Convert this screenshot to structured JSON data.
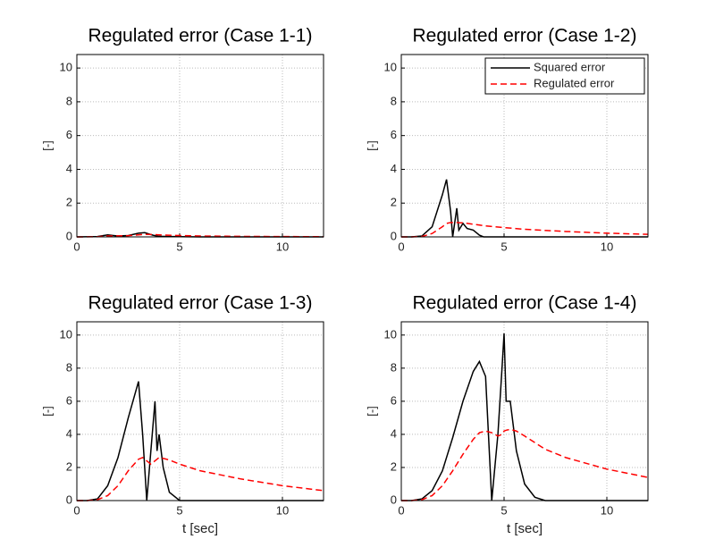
{
  "chart_data": [
    {
      "type": "line",
      "title": "Regulated error (Case 1-1)",
      "ylabel": "[-]",
      "x": [
        0,
        1,
        1.5,
        2,
        2.5,
        3,
        3.3,
        3.7,
        4,
        5,
        6,
        8,
        10,
        12
      ],
      "series": [
        {
          "color": "#000000",
          "dash": false,
          "values": [
            0,
            0.02,
            0.12,
            0.05,
            0.08,
            0.22,
            0.25,
            0.1,
            0.03,
            0.01,
            0,
            0,
            0,
            0
          ]
        },
        {
          "color": "#ff0000",
          "dash": true,
          "values": [
            0,
            0.01,
            0.05,
            0.06,
            0.07,
            0.12,
            0.15,
            0.14,
            0.12,
            0.08,
            0.05,
            0.03,
            0.02,
            0.01
          ]
        }
      ],
      "xlim": [
        0,
        12
      ],
      "ylim": [
        0,
        10.8
      ],
      "xticks": [
        0,
        5,
        10
      ],
      "yticks": [
        0,
        2,
        4,
        6,
        8,
        10
      ],
      "grid": true
    },
    {
      "type": "line",
      "title": "Regulated error (Case 1-2)",
      "ylabel": "[-]",
      "x": [
        0,
        0.5,
        1,
        1.5,
        2,
        2.2,
        2.4,
        2.5,
        2.7,
        2.8,
        3,
        3.2,
        3.5,
        3.8,
        4,
        5,
        6,
        8,
        10,
        12
      ],
      "series": [
        {
          "name": "Squared error",
          "color": "#000000",
          "dash": false,
          "values": [
            0,
            0,
            0.05,
            0.6,
            2.5,
            3.4,
            1.5,
            0,
            1.7,
            0.4,
            0.8,
            0.5,
            0.4,
            0.1,
            0,
            0,
            0,
            0,
            0,
            0
          ]
        },
        {
          "name": "Regulated error",
          "color": "#ff0000",
          "dash": true,
          "values": [
            0,
            0,
            0.02,
            0.2,
            0.6,
            0.8,
            0.85,
            0.85,
            0.85,
            0.84,
            0.83,
            0.8,
            0.75,
            0.7,
            0.66,
            0.55,
            0.45,
            0.32,
            0.22,
            0.15
          ]
        }
      ],
      "legend": "upper right",
      "xlim": [
        0,
        12
      ],
      "ylim": [
        0,
        10.8
      ],
      "xticks": [
        0,
        5,
        10
      ],
      "yticks": [
        0,
        2,
        4,
        6,
        8,
        10
      ],
      "grid": true
    },
    {
      "type": "line",
      "title": "Regulated error (Case 1-3)",
      "ylabel": "[-]",
      "xlabel": "t [sec]",
      "x": [
        0,
        0.5,
        1,
        1.5,
        2,
        2.5,
        3,
        3.2,
        3.4,
        3.6,
        3.8,
        3.9,
        4,
        4.2,
        4.5,
        5,
        6,
        8,
        10,
        12
      ],
      "series": [
        {
          "color": "#000000",
          "dash": false,
          "values": [
            0,
            0,
            0.1,
            0.9,
            2.6,
            5,
            7.2,
            4,
            0,
            3,
            6,
            3,
            4,
            2,
            0.5,
            0,
            0,
            0,
            0,
            0
          ]
        },
        {
          "color": "#ff0000",
          "dash": true,
          "values": [
            0,
            0,
            0.05,
            0.3,
            0.9,
            1.8,
            2.5,
            2.6,
            2.4,
            2.2,
            2.4,
            2.5,
            2.6,
            2.55,
            2.45,
            2.2,
            1.8,
            1.3,
            0.9,
            0.6
          ]
        }
      ],
      "xlim": [
        0,
        12
      ],
      "ylim": [
        0,
        10.8
      ],
      "xticks": [
        0,
        5,
        10
      ],
      "yticks": [
        0,
        2,
        4,
        6,
        8,
        10
      ],
      "grid": true
    },
    {
      "type": "line",
      "title": "Regulated error (Case 1-4)",
      "ylabel": "[-]",
      "xlabel": "t [sec]",
      "x": [
        0,
        0.5,
        1,
        1.5,
        2,
        2.5,
        3,
        3.5,
        3.8,
        4.1,
        4.4,
        4.7,
        4.9,
        5,
        5.1,
        5.3,
        5.6,
        6,
        6.5,
        7,
        8,
        10,
        12
      ],
      "series": [
        {
          "color": "#000000",
          "dash": false,
          "values": [
            0,
            0,
            0.1,
            0.6,
            1.8,
            3.8,
            6,
            7.8,
            8.4,
            7.5,
            0,
            4,
            8,
            10.1,
            6,
            6,
            3,
            1,
            0.2,
            0,
            0,
            0,
            0
          ]
        },
        {
          "color": "#ff0000",
          "dash": true,
          "values": [
            0,
            0,
            0.05,
            0.3,
            0.9,
            1.8,
            2.8,
            3.7,
            4.1,
            4.2,
            4.1,
            3.9,
            4.0,
            4.2,
            4.25,
            4.3,
            4.2,
            3.9,
            3.5,
            3.1,
            2.6,
            1.9,
            1.4
          ]
        }
      ],
      "xlim": [
        0,
        12
      ],
      "ylim": [
        0,
        10.8
      ],
      "xticks": [
        0,
        5,
        10
      ],
      "yticks": [
        0,
        2,
        4,
        6,
        8,
        10
      ],
      "grid": true
    }
  ]
}
